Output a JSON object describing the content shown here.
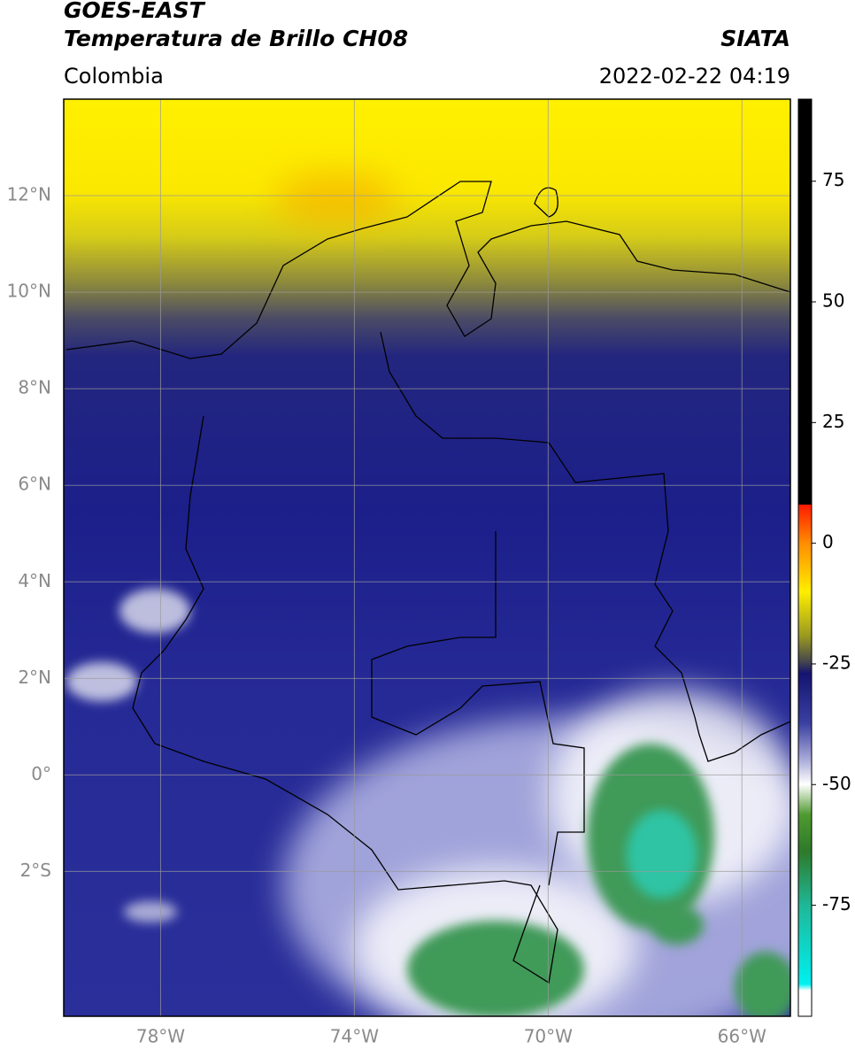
{
  "header": {
    "title_line1": "GOES-EAST",
    "title_line2": "Temperatura de Brillo CH08",
    "region": "Colombia",
    "source": "SIATA",
    "datetime": "2022-02-22 04:19"
  },
  "map": {
    "xlim": [
      -80,
      -65
    ],
    "ylim": [
      -5,
      14
    ],
    "xticks": [
      {
        "value": -78,
        "label": "78°W"
      },
      {
        "value": -74,
        "label": "74°W"
      },
      {
        "value": -70,
        "label": "70°W"
      },
      {
        "value": -66,
        "label": "66°W"
      }
    ],
    "yticks": [
      {
        "value": 12,
        "label": "12°N"
      },
      {
        "value": 10,
        "label": "10°N"
      },
      {
        "value": 8,
        "label": "8°N"
      },
      {
        "value": 6,
        "label": "6°N"
      },
      {
        "value": 4,
        "label": "4°N"
      },
      {
        "value": 2,
        "label": "2°N"
      },
      {
        "value": 0,
        "label": "0°"
      },
      {
        "value": -2,
        "label": "2°S"
      }
    ]
  },
  "colorbar": {
    "lim": [
      -98,
      92
    ],
    "ticks": [
      75,
      50,
      25,
      0,
      -25,
      -50,
      -75
    ]
  }
}
